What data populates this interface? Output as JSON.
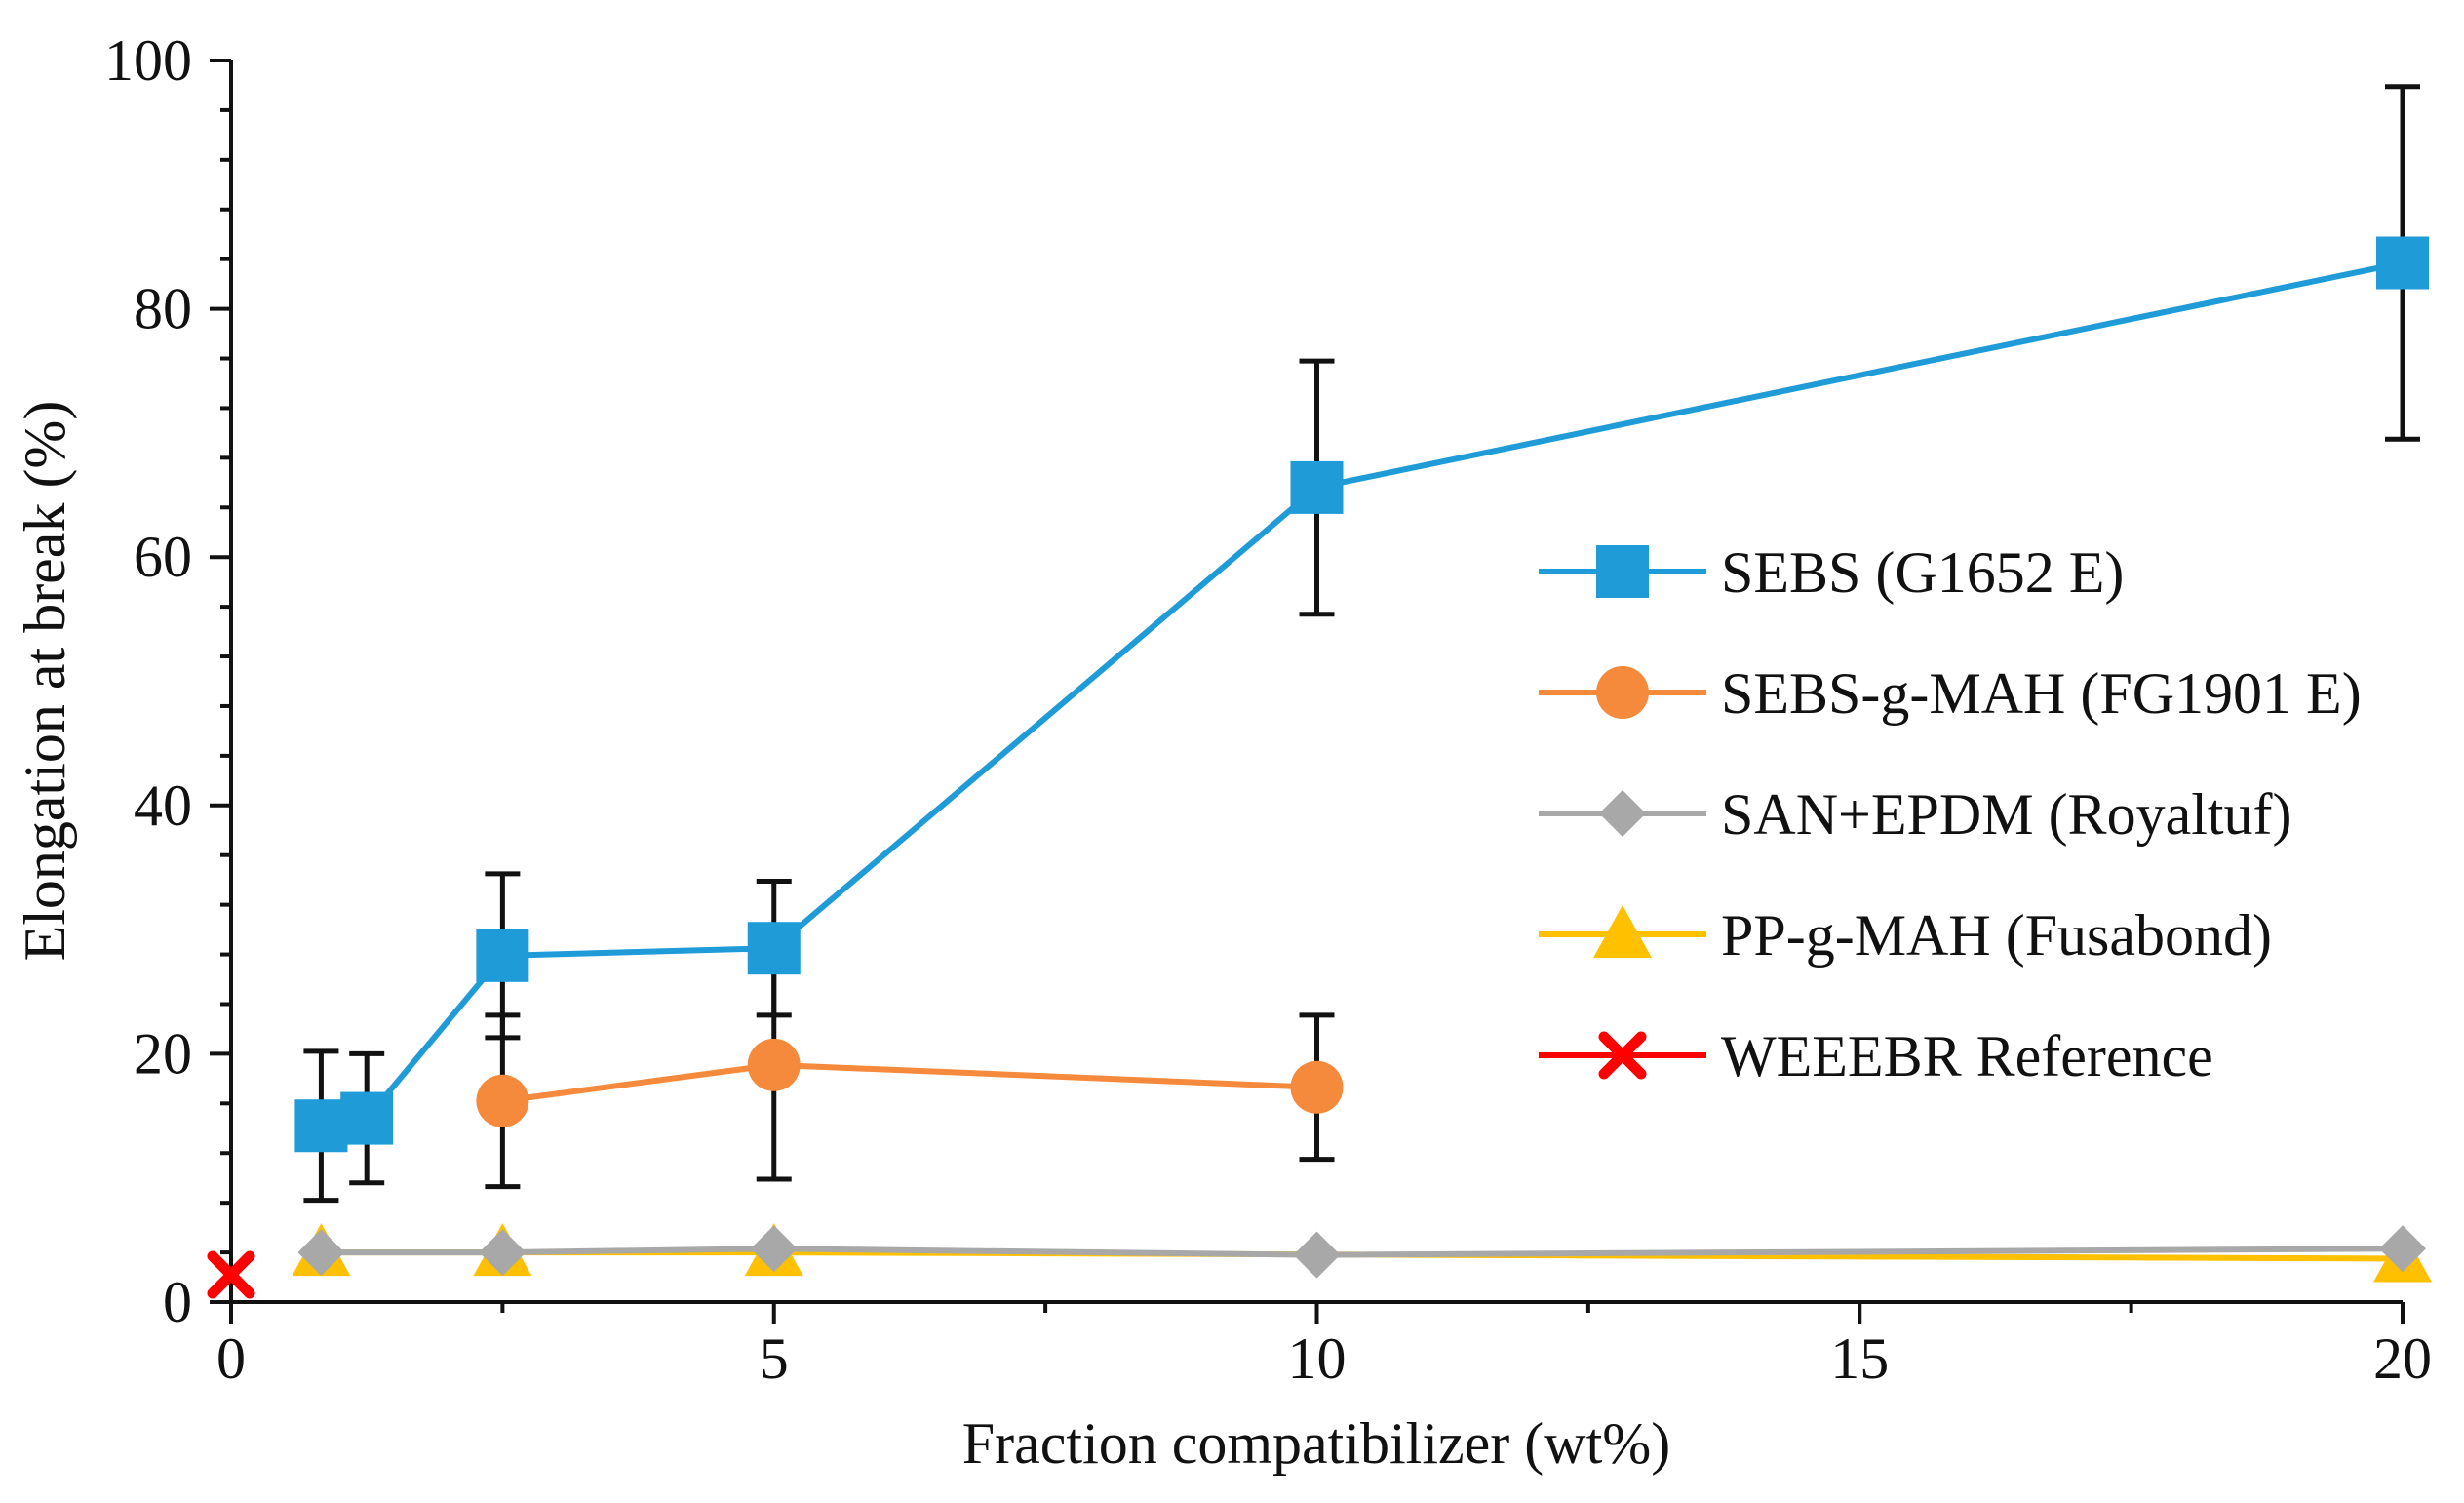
{
  "chart_data": {
    "type": "line",
    "title": "",
    "xlabel": "Fraction compatibilizer (wt%)",
    "ylabel": "Elongation at break (%)",
    "xlim": [
      0,
      20
    ],
    "ylim": [
      0,
      100
    ],
    "x_ticks": [
      "0",
      "5",
      "10",
      "15",
      "20"
    ],
    "y_ticks": [
      "0",
      "20",
      "40",
      "60",
      "80",
      "100"
    ],
    "grid": false,
    "legend_position": "right",
    "series": [
      {
        "name": "SEBS (G1652 E)",
        "color": "#1f9bd7",
        "marker": "square",
        "x": [
          0.83,
          1.25,
          2.5,
          5,
          10,
          20
        ],
        "y": [
          14.2,
          14.8,
          27.9,
          28.5,
          65.6,
          83.7
        ],
        "err": [
          6.0,
          5.2,
          6.6,
          5.4,
          10.2,
          14.2
        ]
      },
      {
        "name": "SEBS-g-MAH (FG1901 E)",
        "color": "#f58a3c",
        "marker": "circle",
        "x": [
          2.5,
          5,
          10
        ],
        "y": [
          16.2,
          19.1,
          17.3
        ],
        "err": [
          6.9,
          9.2,
          5.8
        ]
      },
      {
        "name": "SAN+EPDM (Royaltuf)",
        "color": "#a8a8a8",
        "marker": "diamond",
        "x": [
          0.83,
          2.5,
          5,
          10,
          20
        ],
        "y": [
          4.0,
          4.0,
          4.3,
          3.8,
          4.3
        ],
        "err": []
      },
      {
        "name": "PP-g-MAH (Fusabond)",
        "color": "#ffc000",
        "marker": "triangle",
        "x": [
          0.83,
          2.5,
          5,
          20
        ],
        "y": [
          4.0,
          4.0,
          4.0,
          3.5
        ],
        "err": []
      },
      {
        "name": "WEEEBR Reference",
        "color": "#ff0000",
        "marker": "x",
        "x": [
          0
        ],
        "y": [
          2.2
        ],
        "err": []
      }
    ]
  }
}
